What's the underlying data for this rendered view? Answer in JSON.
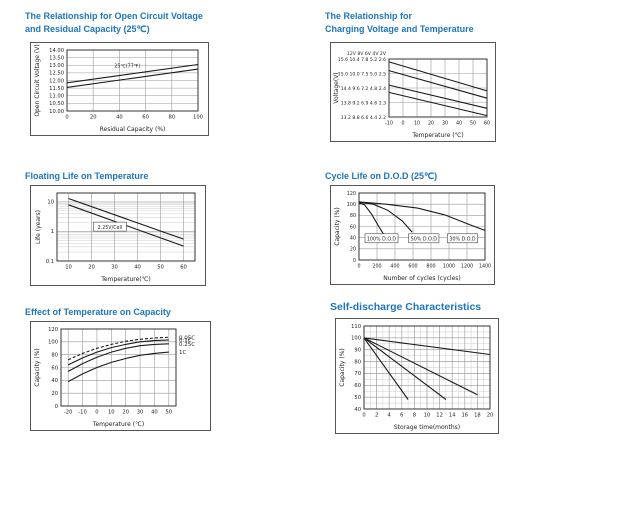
{
  "colors": {
    "title": "#1d76bd",
    "line": "#1a1a1a",
    "grid": "#9a9a9a",
    "grid_minor": "#cccccc",
    "plot_border": "#333333",
    "frame_border": "#555555",
    "text": "#222222",
    "background": "#ffffff"
  },
  "chart_data": [
    {
      "key": "open-circuit-voltage-vs-residual-capacity",
      "type": "line",
      "title_line1": "The Relationship for Open Circuit Voltage",
      "title_line2": "and Residual Capacity (25℃)",
      "xlabel": "Residual Capacity (%)",
      "ylabel": "Open Circuit Voltage (V)",
      "xlim": [
        0,
        100
      ],
      "ylim": [
        10,
        14
      ],
      "x_ticks": [
        {
          "v": 0,
          "label": "0"
        },
        {
          "v": 20,
          "label": "20"
        },
        {
          "v": 40,
          "label": "40"
        },
        {
          "v": 60,
          "label": "60"
        },
        {
          "v": 80,
          "label": "80"
        },
        {
          "v": 100,
          "label": "100"
        }
      ],
      "y_ticks": [
        {
          "v": 14,
          "label": "14.00"
        },
        {
          "v": 13.5,
          "label": "13.50"
        },
        {
          "v": 13,
          "label": "13.00"
        },
        {
          "v": 12.5,
          "label": "12.50"
        },
        {
          "v": 12,
          "label": "12.00"
        },
        {
          "v": 11.5,
          "label": "11.50"
        },
        {
          "v": 11,
          "label": "11.00"
        },
        {
          "v": 10.5,
          "label": "10.50"
        },
        {
          "v": 10,
          "label": "10.00"
        }
      ],
      "series": [
        {
          "name": "upper-line",
          "points": [
            [
              0,
              11.85
            ],
            [
              100,
              13.05
            ]
          ]
        },
        {
          "name": "lower-line",
          "points": [
            [
              0,
              11.55
            ],
            [
              100,
              12.75
            ]
          ]
        }
      ],
      "annotations": [
        {
          "x": 46,
          "y": 12.95,
          "text": "25℃(77℉)",
          "boxed": false
        }
      ]
    },
    {
      "key": "charging-voltage-vs-temperature",
      "type": "line",
      "title_line1": "The Relationship for",
      "title_line2": "Charging Voltage and Temperature",
      "xlabel": "Temperature (℃)",
      "ylabel": "Voltage(V)",
      "y_header": "12V  8V  6V  4V  2V",
      "xlim": [
        -10,
        60
      ],
      "ylim": [
        2.2,
        2.6
      ],
      "tick_font": 4.8,
      "y_tick_font": 4.6,
      "x_ticks": [
        {
          "v": -10,
          "label": "-10"
        },
        {
          "v": 0,
          "label": "0"
        },
        {
          "v": 10,
          "label": "10"
        },
        {
          "v": 20,
          "label": "20"
        },
        {
          "v": 30,
          "label": "30"
        },
        {
          "v": 40,
          "label": "40"
        },
        {
          "v": 50,
          "label": "50"
        },
        {
          "v": 60,
          "label": "60"
        }
      ],
      "y_ticks": [
        {
          "v": 2.6,
          "label": "15.6 10.4 7.8 5.2 2.6"
        },
        {
          "v": 2.5,
          "label": "15.0 10.0 7.5 5.0 2.5"
        },
        {
          "v": 2.4,
          "label": "14.4 9.6 7.2 4.8 2.4"
        },
        {
          "v": 2.3,
          "label": "13.8 9.2 6.9 4.6 2.3"
        },
        {
          "v": 2.2,
          "label": "13.2 8.8 6.6 4.4 2.2"
        }
      ],
      "series": [
        {
          "name": "cycle-use-upper",
          "points": [
            [
              -10,
              2.58
            ],
            [
              60,
              2.38
            ]
          ]
        },
        {
          "name": "cycle-use-lower",
          "points": [
            [
              -10,
              2.52
            ],
            [
              60,
              2.33
            ]
          ]
        },
        {
          "name": "float-use-upper",
          "points": [
            [
              -10,
              2.42
            ],
            [
              60,
              2.26
            ]
          ]
        },
        {
          "name": "float-use-lower",
          "points": [
            [
              -10,
              2.37
            ],
            [
              60,
              2.21
            ]
          ]
        }
      ],
      "annotations": []
    },
    {
      "key": "floating-life-on-temperature",
      "type": "line",
      "title_line1": "Floating Life on Temperature",
      "xlabel": "Temperature(℃)",
      "ylabel": "Life (years)",
      "xlim": [
        5,
        65
      ],
      "ylim": [
        0.1,
        20
      ],
      "ylog": true,
      "x_ticks": [
        {
          "v": 10,
          "label": "10"
        },
        {
          "v": 20,
          "label": "20"
        },
        {
          "v": 30,
          "label": "30"
        },
        {
          "v": 40,
          "label": "40"
        },
        {
          "v": 50,
          "label": "50"
        },
        {
          "v": 60,
          "label": "60"
        }
      ],
      "y_ticks": [
        {
          "v": 10,
          "label": "10"
        },
        {
          "v": 1,
          "label": "1"
        },
        {
          "v": 0.1,
          "label": "0.1"
        }
      ],
      "series": [
        {
          "name": "upper-line",
          "points": [
            [
              10,
              13
            ],
            [
              60,
              0.55
            ]
          ]
        },
        {
          "name": "lower-line",
          "points": [
            [
              10,
              8
            ],
            [
              60,
              0.32
            ]
          ]
        }
      ],
      "annotations": [
        {
          "x": 28,
          "y": 1.4,
          "text": "2.25V/Cell",
          "boxed": true
        }
      ]
    },
    {
      "key": "cycle-life-on-dod",
      "type": "line",
      "title_line1": "Cycle Life on D.O.D (25℃)",
      "xlabel": "Number of cycles (cycles)",
      "ylabel": "Capacity (%)",
      "xlim": [
        0,
        1400
      ],
      "ylim": [
        0,
        120
      ],
      "tick_font": 4.8,
      "x_ticks": [
        {
          "v": 0,
          "label": "0"
        },
        {
          "v": 200,
          "label": "200"
        },
        {
          "v": 400,
          "label": "400"
        },
        {
          "v": 600,
          "label": "600"
        },
        {
          "v": 800,
          "label": "800"
        },
        {
          "v": 1000,
          "label": "1000"
        },
        {
          "v": 1200,
          "label": "1200"
        },
        {
          "v": 1400,
          "label": "1400"
        }
      ],
      "y_ticks": [
        {
          "v": 120,
          "label": "120"
        },
        {
          "v": 100,
          "label": "100"
        },
        {
          "v": 80,
          "label": "80"
        },
        {
          "v": 60,
          "label": "60"
        },
        {
          "v": 40,
          "label": "40"
        },
        {
          "v": 20,
          "label": "20"
        },
        {
          "v": 0,
          "label": "0"
        }
      ],
      "series": [
        {
          "name": "100-percent-dod",
          "points": [
            [
              0,
              102
            ],
            [
              60,
              99
            ],
            [
              140,
              82
            ],
            [
              220,
              60
            ],
            [
              270,
              47
            ]
          ]
        },
        {
          "name": "50-percent-dod",
          "points": [
            [
              0,
              103
            ],
            [
              160,
              100
            ],
            [
              320,
              89
            ],
            [
              480,
              70
            ],
            [
              590,
              50
            ]
          ]
        },
        {
          "name": "30-percent-dod",
          "points": [
            [
              0,
              104
            ],
            [
              300,
              100
            ],
            [
              650,
              93
            ],
            [
              950,
              81
            ],
            [
              1250,
              62
            ],
            [
              1400,
              53
            ]
          ]
        }
      ],
      "annotations": [
        {
          "x": 250,
          "y": 38,
          "text": "100% D.O.D",
          "boxed": true
        },
        {
          "x": 720,
          "y": 38,
          "text": "50% D.O.D",
          "boxed": true
        },
        {
          "x": 1150,
          "y": 38,
          "text": "30% D.O.D",
          "boxed": true
        }
      ]
    },
    {
      "key": "effect-of-temperature-on-capacity",
      "type": "line",
      "title_line1": "Effect of Temperature on Capacity",
      "xlabel": "Temperature (℃)",
      "ylabel": "Capacity (%)",
      "xlim": [
        -25,
        55
      ],
      "ylim": [
        0,
        120
      ],
      "x_ticks": [
        {
          "v": -20,
          "label": "-20"
        },
        {
          "v": -10,
          "label": "-10"
        },
        {
          "v": 0,
          "label": "0"
        },
        {
          "v": 10,
          "label": "10"
        },
        {
          "v": 20,
          "label": "20"
        },
        {
          "v": 30,
          "label": "30"
        },
        {
          "v": 40,
          "label": "40"
        },
        {
          "v": 50,
          "label": "50"
        }
      ],
      "y_ticks": [
        {
          "v": 120,
          "label": "120"
        },
        {
          "v": 100,
          "label": "100"
        },
        {
          "v": 80,
          "label": "80"
        },
        {
          "v": 60,
          "label": "60"
        },
        {
          "v": 40,
          "label": "40"
        },
        {
          "v": 20,
          "label": "20"
        },
        {
          "v": 0,
          "label": "0"
        }
      ],
      "series": [
        {
          "name": "0.05C",
          "label_right": true,
          "dash": "3,2",
          "points": [
            [
              -20,
              72
            ],
            [
              -10,
              82
            ],
            [
              0,
              90
            ],
            [
              10,
              96
            ],
            [
              20,
              101
            ],
            [
              30,
              104
            ],
            [
              40,
              106
            ],
            [
              50,
              107
            ]
          ]
        },
        {
          "name": "0.1C",
          "label_right": true,
          "points": [
            [
              -20,
              64
            ],
            [
              -10,
              75
            ],
            [
              0,
              84
            ],
            [
              10,
              91
            ],
            [
              20,
              96
            ],
            [
              30,
              100
            ],
            [
              40,
              102
            ],
            [
              50,
              103
            ]
          ]
        },
        {
          "name": "0.25C",
          "label_right": true,
          "points": [
            [
              -20,
              54
            ],
            [
              -10,
              66
            ],
            [
              0,
              76
            ],
            [
              10,
              84
            ],
            [
              20,
              90
            ],
            [
              30,
              94
            ],
            [
              40,
              96
            ],
            [
              50,
              97
            ]
          ]
        },
        {
          "name": "1C",
          "label_right": true,
          "points": [
            [
              -20,
              38
            ],
            [
              -10,
              50
            ],
            [
              0,
              60
            ],
            [
              10,
              68
            ],
            [
              20,
              74
            ],
            [
              30,
              79
            ],
            [
              40,
              82
            ],
            [
              50,
              84
            ]
          ]
        }
      ],
      "annotations": []
    },
    {
      "key": "self-discharge-characteristics",
      "type": "line",
      "title_line1": "Self-discharge Characteristics",
      "xlabel": "Storage time(months)",
      "ylabel": "Capacity (%)",
      "xlim": [
        0,
        20
      ],
      "ylim": [
        40,
        110
      ],
      "x_minor_step": 1,
      "y_minor_step": 5,
      "x_ticks": [
        {
          "v": 0,
          "label": "0"
        },
        {
          "v": 2,
          "label": "2"
        },
        {
          "v": 4,
          "label": "4"
        },
        {
          "v": 6,
          "label": "6"
        },
        {
          "v": 8,
          "label": "8"
        },
        {
          "v": 10,
          "label": "10"
        },
        {
          "v": 12,
          "label": "12"
        },
        {
          "v": 14,
          "label": "14"
        },
        {
          "v": 16,
          "label": "16"
        },
        {
          "v": 18,
          "label": "18"
        },
        {
          "v": 20,
          "label": "20"
        }
      ],
      "y_ticks": [
        {
          "v": 110,
          "label": "110"
        },
        {
          "v": 100,
          "label": "100"
        },
        {
          "v": 90,
          "label": "90"
        },
        {
          "v": 80,
          "label": "80"
        },
        {
          "v": 70,
          "label": "70"
        },
        {
          "v": 60,
          "label": "60"
        },
        {
          "v": 50,
          "label": "50"
        },
        {
          "v": 40,
          "label": "40"
        }
      ],
      "series": [
        {
          "name": "series-1",
          "points": [
            [
              0,
              100
            ],
            [
              7,
              48
            ]
          ]
        },
        {
          "name": "series-2",
          "points": [
            [
              0,
              100
            ],
            [
              13,
              48
            ]
          ]
        },
        {
          "name": "series-3",
          "points": [
            [
              0,
              100
            ],
            [
              18,
              52
            ]
          ]
        },
        {
          "name": "series-4",
          "points": [
            [
              0,
              100
            ],
            [
              20,
              86
            ]
          ]
        }
      ],
      "annotations": []
    }
  ]
}
